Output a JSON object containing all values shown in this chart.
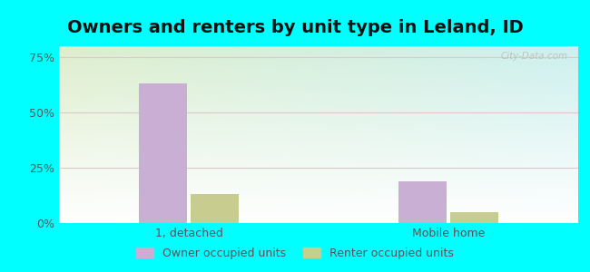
{
  "title": "Owners and renters by unit type in Leland, ID",
  "categories": [
    "1, detached",
    "Mobile home"
  ],
  "owner_values": [
    63,
    19
  ],
  "renter_values": [
    13,
    5
  ],
  "owner_color": "#c9afd4",
  "renter_color": "#c8cc8e",
  "yticks": [
    0,
    25,
    50,
    75
  ],
  "ytick_labels": [
    "0%",
    "25%",
    "50%",
    "75%"
  ],
  "ylim": [
    0,
    80
  ],
  "bar_width": 0.28,
  "group_positions": [
    0.75,
    2.25
  ],
  "xlim": [
    0.0,
    3.0
  ],
  "outer_bg": "#00ffff",
  "legend_labels": [
    "Owner occupied units",
    "Renter occupied units"
  ],
  "watermark": "City-Data.com",
  "title_fontsize": 14,
  "tick_fontsize": 9,
  "legend_fontsize": 9,
  "grid_color": "#ddc8cc",
  "text_color": "#555555"
}
